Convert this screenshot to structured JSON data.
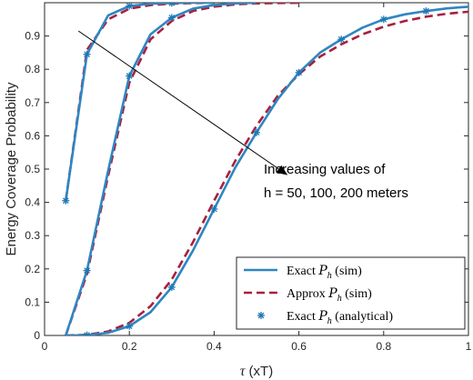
{
  "chart_data": {
    "type": "line",
    "xlabel_sym": "τ",
    "xlabel_unit": "(xT)",
    "ylabel": "Energy Coverage Probability",
    "xlim": [
      0,
      1
    ],
    "ylim": [
      0,
      1
    ],
    "xticks": [
      0,
      0.2,
      0.4,
      0.6,
      0.8,
      1
    ],
    "xtick_labels": [
      "0",
      "0.2",
      "0.4",
      "0.6",
      "0.8",
      "1"
    ],
    "yticks": [
      0,
      0.1,
      0.2,
      0.3,
      0.4,
      0.5,
      0.6,
      0.7,
      0.8,
      0.9
    ],
    "ytick_labels": [
      "0",
      "0.1",
      "0.2",
      "0.3",
      "0.4",
      "0.5",
      "0.6",
      "0.7",
      "0.8",
      "0.9"
    ],
    "grid": false,
    "legend_position": "bottom-right",
    "annotation": {
      "line1": "Increasing values of",
      "line2": "h = 50, 100, 200 meters",
      "arrow_from": [
        0.08,
        0.915
      ],
      "arrow_to": [
        0.57,
        0.485
      ]
    },
    "groups": [
      {
        "h": 50,
        "exact_sim": {
          "x": [
            0.05,
            0.1,
            0.15,
            0.2,
            0.25,
            0.3,
            0.35,
            0.4
          ],
          "y": [
            0.405,
            0.845,
            0.962,
            0.99,
            0.997,
            0.999,
            1.0,
            1.0
          ]
        },
        "approx_sim": {
          "x": [
            0.05,
            0.1,
            0.15,
            0.2,
            0.25,
            0.3,
            0.35,
            0.4
          ],
          "y": [
            0.405,
            0.858,
            0.95,
            0.982,
            0.993,
            0.997,
            0.999,
            1.0
          ]
        },
        "analytical": {
          "x": [
            0.05,
            0.1,
            0.2,
            0.3
          ],
          "y": [
            0.405,
            0.845,
            0.99,
            0.999
          ]
        }
      },
      {
        "h": 100,
        "exact_sim": {
          "x": [
            0.05,
            0.1,
            0.15,
            0.2,
            0.25,
            0.3,
            0.35,
            0.4,
            0.45,
            0.5
          ],
          "y": [
            0.0,
            0.195,
            0.495,
            0.78,
            0.905,
            0.955,
            0.982,
            0.993,
            0.998,
            1.0
          ]
        },
        "approx_sim": {
          "x": [
            0.05,
            0.1,
            0.15,
            0.2,
            0.25,
            0.3,
            0.35,
            0.4,
            0.45,
            0.5,
            0.55,
            0.6
          ],
          "y": [
            0.0,
            0.185,
            0.48,
            0.76,
            0.89,
            0.945,
            0.975,
            0.988,
            0.995,
            0.998,
            0.999,
            1.0
          ]
        },
        "analytical": {
          "x": [
            0.1,
            0.2,
            0.3
          ],
          "y": [
            0.195,
            0.78,
            0.955
          ]
        }
      },
      {
        "h": 200,
        "exact_sim": {
          "x": [
            0.05,
            0.1,
            0.15,
            0.2,
            0.25,
            0.3,
            0.35,
            0.4,
            0.45,
            0.5,
            0.55,
            0.6,
            0.65,
            0.7,
            0.75,
            0.8,
            0.85,
            0.9,
            0.95,
            1.0
          ],
          "y": [
            0.0,
            0.001,
            0.008,
            0.028,
            0.07,
            0.145,
            0.255,
            0.38,
            0.505,
            0.61,
            0.71,
            0.79,
            0.85,
            0.89,
            0.925,
            0.95,
            0.965,
            0.975,
            0.983,
            0.988
          ]
        },
        "approx_sim": {
          "x": [
            0.05,
            0.1,
            0.15,
            0.2,
            0.25,
            0.3,
            0.35,
            0.4,
            0.45,
            0.5,
            0.55,
            0.6,
            0.65,
            0.7,
            0.75,
            0.8,
            0.85,
            0.9,
            0.95,
            1.0
          ],
          "y": [
            0.0,
            0.002,
            0.012,
            0.038,
            0.088,
            0.168,
            0.28,
            0.405,
            0.525,
            0.63,
            0.72,
            0.785,
            0.838,
            0.875,
            0.905,
            0.928,
            0.945,
            0.958,
            0.967,
            0.973
          ]
        },
        "analytical": {
          "x": [
            0.1,
            0.2,
            0.3,
            0.4,
            0.5,
            0.6,
            0.7,
            0.8,
            0.9
          ],
          "y": [
            0.001,
            0.028,
            0.145,
            0.38,
            0.61,
            0.79,
            0.89,
            0.95,
            0.975
          ]
        }
      }
    ],
    "legend": [
      {
        "kind": "solid",
        "prefix": "Exact ",
        "sym": "P",
        "sub": "h",
        "suffix": " (sim)"
      },
      {
        "kind": "dashed",
        "prefix": "Approx ",
        "sym": "P",
        "sub": "h",
        "suffix": " (sim)"
      },
      {
        "kind": "marker",
        "prefix": "Exact ",
        "sym": "P",
        "sub": "h",
        "suffix": " (analytical)"
      }
    ],
    "colors": {
      "exact": "#1f77b4",
      "exact_line": "#2e86c1",
      "approx": "#a8203f",
      "marker": "#1f77b4",
      "axis": "#262626"
    }
  }
}
